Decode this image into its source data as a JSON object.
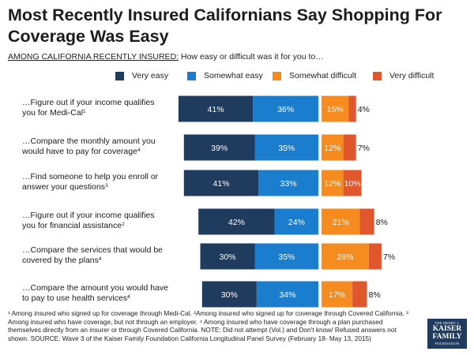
{
  "page": {
    "title": "Most Recently Insured Californians Say Shopping For Coverage Was Easy",
    "subtitle_lead": "AMONG CALIFORNIA RECENTLY INSURED:",
    "subtitle_question": " How easy or difficult was it for you to…",
    "footnote": "¹ Among insured who signed up for coverage through Medi-Cal. ²Among insured who signed up for coverage through Covered California. ³ Among insured who have coverage, but not through an employer. ⁴ Among insured who have coverage through a plan purchased themselves directly from an insurer or through Covered California. NOTE: Did not attempt (Vol.) and Don't know/ Refused answers not shown. SOURCE: Wave 3 of the Kaiser Family Foundation California Longitudinal Panel Survey (February 18- May 13, 2015)",
    "logo": {
      "line1": "THE HENRY J.",
      "line2": "KAISER",
      "line3": "FAMILY",
      "line4": "FOUNDATION"
    }
  },
  "chart_data": {
    "type": "bar",
    "orientation": "horizontal",
    "stacking": "diverging",
    "title": "Most Recently Insured Californians Say Shopping For Coverage Was Easy",
    "legend_position": "top",
    "categories": [
      {
        "text": "…Figure out if your income qualifies you for Medi-Cal",
        "sup": "1"
      },
      {
        "text": "…Compare the monthly amount you would have to pay for coverage",
        "sup": "4"
      },
      {
        "text": "…Find someone to help you enroll or answer your questions",
        "sup": "3"
      },
      {
        "text": "…Figure out if your income qualifies you for financial assistance",
        "sup": "2"
      },
      {
        "text": "…Compare the services that would be covered by the plans",
        "sup": "4"
      },
      {
        "text": "…Compare the amount you would have to pay to use health services",
        "sup": "4"
      }
    ],
    "series": [
      {
        "name": "Very easy",
        "color": "#1f3b5e",
        "side": "easy",
        "values": [
          41,
          39,
          41,
          42,
          30,
          30
        ]
      },
      {
        "name": "Somewhat easy",
        "color": "#1b7dce",
        "side": "easy",
        "values": [
          36,
          35,
          33,
          24,
          35,
          34
        ]
      },
      {
        "name": "Somewhat difficult",
        "color": "#f68b1f",
        "side": "difficult",
        "values": [
          15,
          12,
          12,
          21,
          26,
          17
        ]
      },
      {
        "name": "Very difficult",
        "color": "#e0562d",
        "side": "difficult",
        "values": [
          4,
          7,
          10,
          8,
          7,
          8
        ]
      }
    ],
    "value_suffix": "%"
  }
}
